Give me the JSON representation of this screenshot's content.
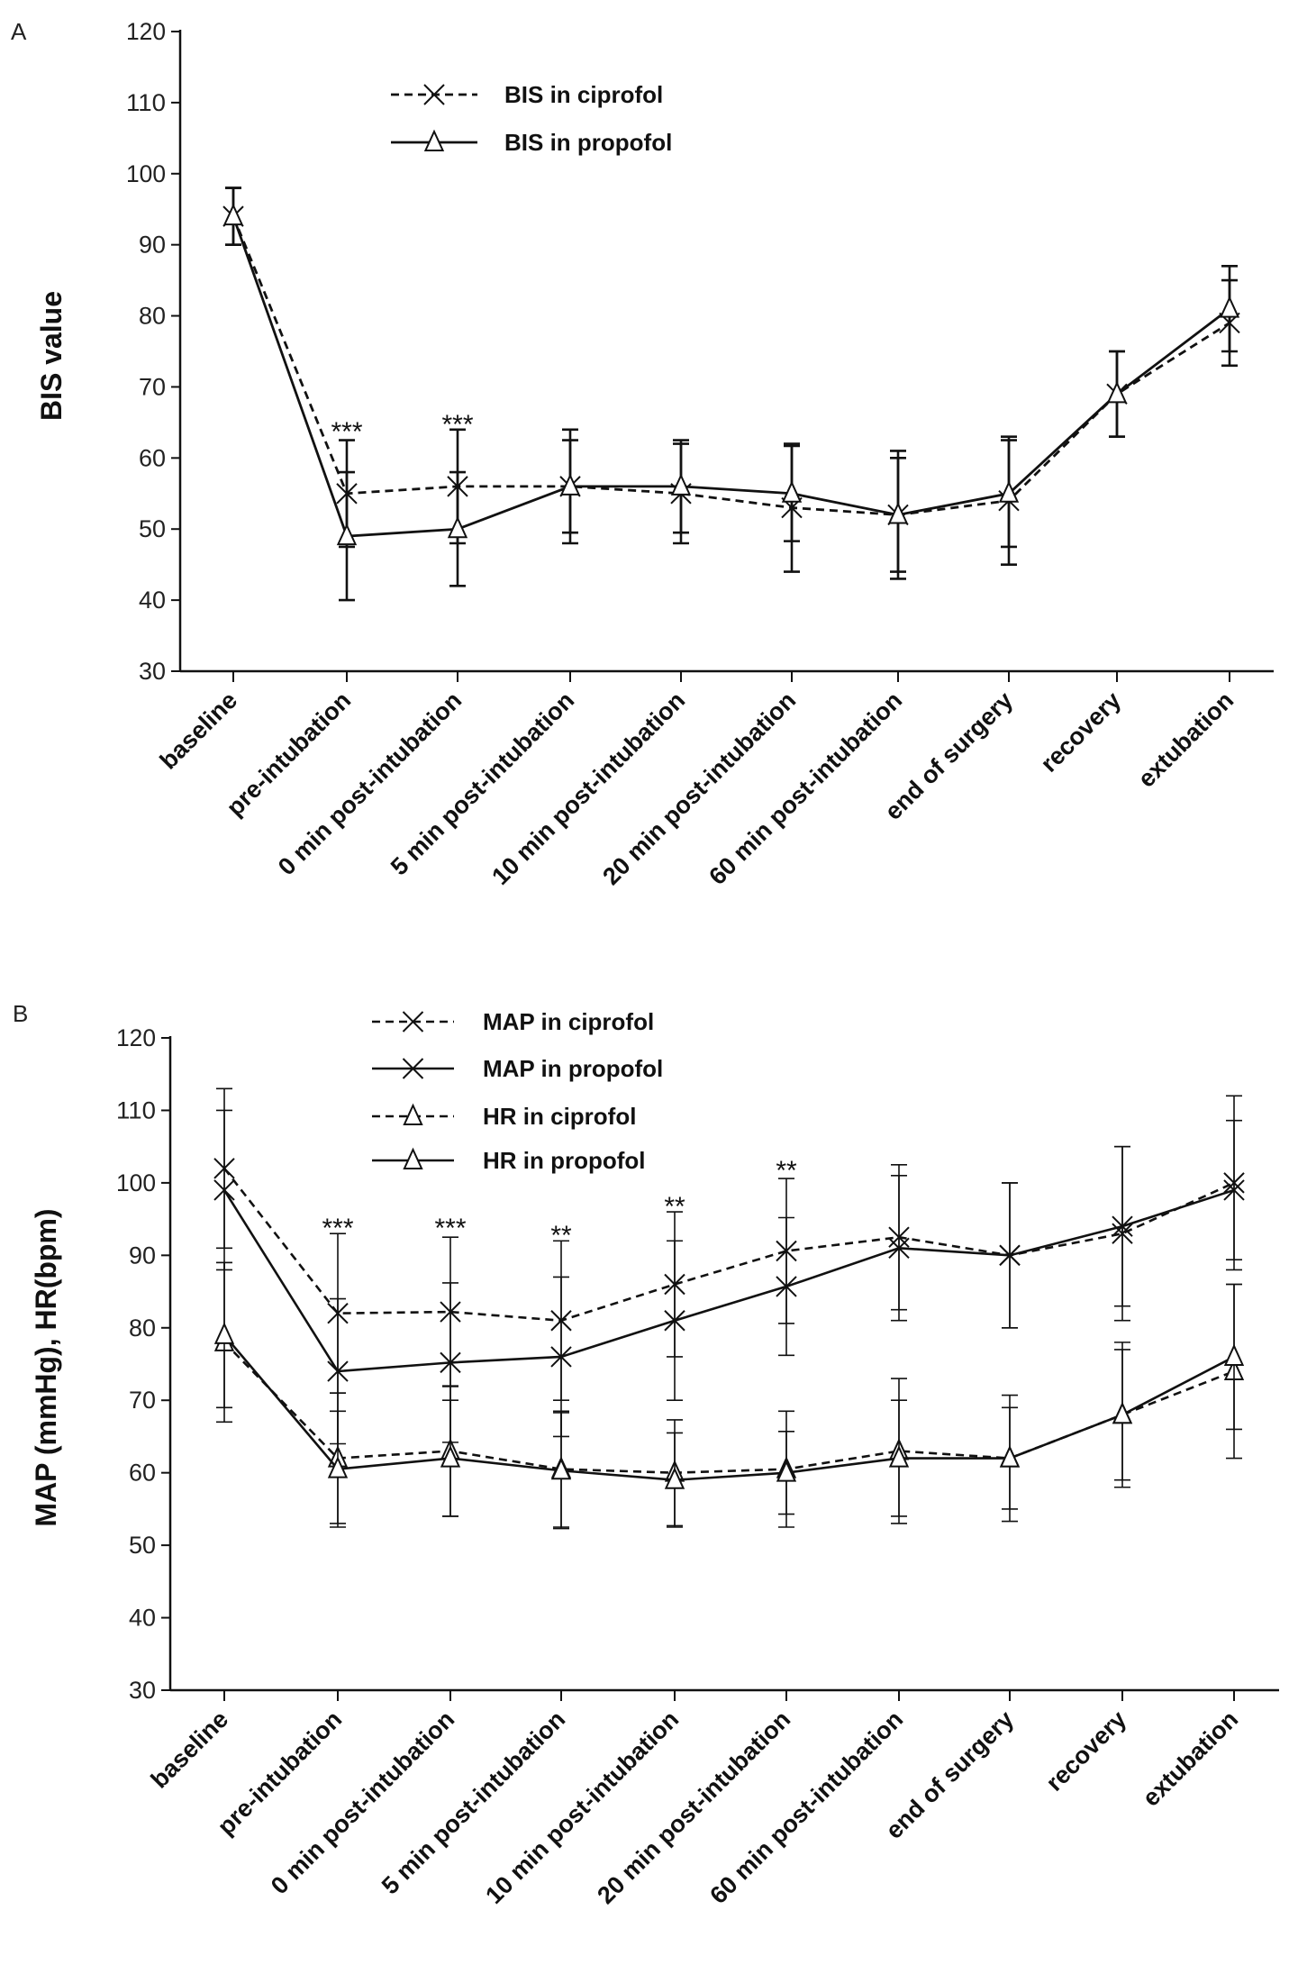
{
  "chart_data": [
    {
      "type": "line",
      "panel_label": "A",
      "title": "",
      "xlabel": "",
      "ylabel": "BIS value",
      "ylim": [
        30,
        120
      ],
      "yticks": [
        30,
        40,
        50,
        60,
        70,
        80,
        90,
        100,
        110,
        120
      ],
      "grid": false,
      "legend_placement": "top-left",
      "categories": [
        "baseline",
        "pre-intubation",
        "0 min post-intubation",
        "5 min post-intubation",
        "10 min post-intubation",
        "20 min post-intubation",
        "60 min post-intubation",
        "end of surgery",
        "recovery",
        "extubation"
      ],
      "series": [
        {
          "name": "BIS in ciprofol",
          "marker": "x",
          "dash": true,
          "values": [
            94,
            55,
            56,
            56,
            55,
            53,
            52,
            54,
            69,
            79
          ],
          "sd": [
            4,
            7.5,
            8,
            8,
            7,
            9,
            9,
            9,
            6,
            6
          ]
        },
        {
          "name": "BIS in propofol",
          "marker": "triangle",
          "dash": false,
          "values": [
            94,
            49,
            50,
            56,
            56,
            55,
            52,
            55,
            69,
            81
          ],
          "sd": [
            4,
            9,
            8,
            6.5,
            6.5,
            6.7,
            8,
            7.5,
            6,
            6
          ]
        }
      ],
      "annotations": [
        {
          "category": 1,
          "text": "***",
          "value": 64
        },
        {
          "category": 2,
          "text": "***",
          "value": 65
        }
      ]
    },
    {
      "type": "line",
      "panel_label": "B",
      "title": "",
      "xlabel": "",
      "ylabel": "MAP (mmHg), HR(bpm)",
      "ylim": [
        30,
        120
      ],
      "yticks": [
        30,
        40,
        50,
        60,
        70,
        80,
        90,
        100,
        110,
        120
      ],
      "grid": false,
      "legend_placement": "top-left",
      "categories": [
        "baseline",
        "pre-intubation",
        "0 min post-intubation",
        "5 min post-intubation",
        "10 min post-intubation",
        "20 min post-intubation",
        "60 min post-intubation",
        "end of surgery",
        "recovery",
        "extubation"
      ],
      "series": [
        {
          "name": "MAP in ciprofol",
          "marker": "x",
          "dash": true,
          "values": [
            102,
            82,
            82.2,
            81,
            86,
            90.6,
            92.5,
            90,
            93,
            100
          ],
          "sd": [
            11,
            11,
            10.3,
            11,
            10,
            10,
            10,
            10,
            12,
            12
          ]
        },
        {
          "name": "MAP in propofol",
          "marker": "x",
          "dash": false,
          "values": [
            99,
            74,
            75.2,
            76,
            81,
            85.7,
            91,
            90,
            94,
            99
          ],
          "sd": [
            11,
            10,
            11,
            11,
            11,
            9.5,
            10,
            10,
            11,
            9.6
          ]
        },
        {
          "name": "HR in ciprofol",
          "marker": "triangle",
          "dash": true,
          "values": [
            78,
            62,
            63,
            60.5,
            60,
            60.5,
            63,
            62,
            68,
            74
          ],
          "sd": [
            11,
            9,
            9,
            8,
            7.3,
            8,
            10,
            8.7,
            9,
            12
          ]
        },
        {
          "name": "HR in propofol",
          "marker": "triangle",
          "dash": false,
          "values": [
            79,
            60.5,
            62,
            60.3,
            59,
            60,
            62,
            62,
            68,
            76
          ],
          "sd": [
            10,
            8,
            8,
            8,
            6.5,
            5.7,
            8,
            7,
            10,
            10
          ]
        }
      ],
      "annotations": [
        {
          "category": 1,
          "text": "***",
          "value": 94
        },
        {
          "category": 2,
          "text": "***",
          "value": 94
        },
        {
          "category": 3,
          "text": "**",
          "value": 93
        },
        {
          "category": 4,
          "text": "**",
          "value": 97
        },
        {
          "category": 5,
          "text": "**",
          "value": 102
        }
      ]
    }
  ]
}
